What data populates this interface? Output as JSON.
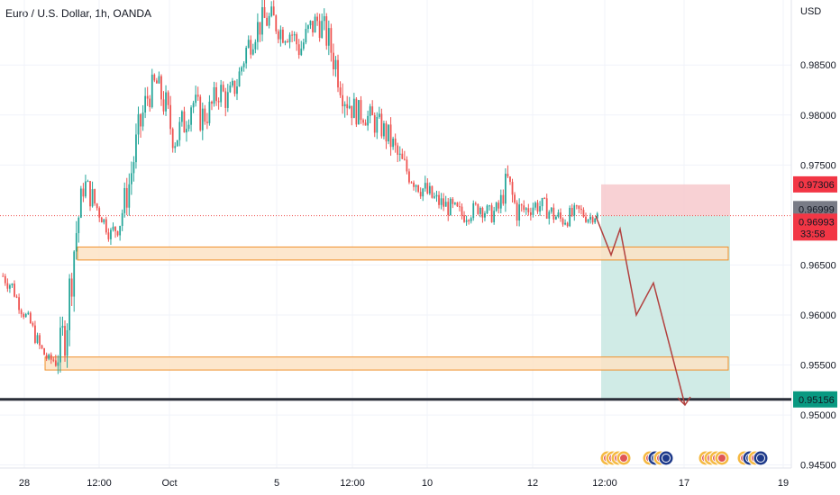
{
  "chart_data": {
    "type": "candlestick",
    "title": "Euro / U.S. Dollar, 1h, OANDA",
    "currency": "USD",
    "ylim": [
      0.942,
      0.9915
    ],
    "y_ticks": [
      "0.98500",
      "0.98000",
      "0.97500",
      "0.96500",
      "0.96000",
      "0.95500",
      "0.95000",
      "0.94500"
    ],
    "y_tick_values": [
      0.985,
      0.98,
      0.975,
      0.965,
      0.96,
      0.955,
      0.95,
      0.945
    ],
    "x_ticks": [
      "28",
      "12:00",
      "Oct",
      "5",
      "12:00",
      "10",
      "12",
      "12:00",
      "17",
      "19"
    ],
    "price_labels": {
      "stop": "0.97306",
      "current_gray": "0.96999",
      "current_red": "0.96993",
      "countdown": "33:58",
      "target": "0.95156"
    },
    "levels": {
      "stop": 0.97306,
      "entry": 0.96993,
      "target": 0.95156,
      "zone_upper": [
        0.9655,
        0.9668
      ],
      "zone_lower": [
        0.9545,
        0.9558
      ]
    },
    "projection": [
      [
        0.9699,
        0.966
      ],
      [
        0.966,
        0.9686
      ],
      [
        0.9686,
        0.96
      ],
      [
        0.96,
        0.9632
      ],
      [
        0.9632,
        0.951
      ]
    ],
    "price_path": [
      [
        0.963,
        0.9648
      ],
      [
        0.962,
        0.9638
      ],
      [
        0.96,
        0.9612
      ],
      [
        0.9585,
        0.96
      ],
      [
        0.956,
        0.9578
      ],
      [
        0.955,
        0.956
      ],
      [
        0.9542,
        0.957
      ],
      [
        0.956,
        0.962
      ],
      [
        0.965,
        0.97
      ],
      [
        0.972,
        0.9745
      ],
      [
        0.97,
        0.973
      ],
      [
        0.969,
        0.9705
      ],
      [
        0.967,
        0.969
      ],
      [
        0.968,
        0.971
      ],
      [
        0.971,
        0.975
      ],
      [
        0.976,
        0.98
      ],
      [
        0.98,
        0.9835
      ],
      [
        0.982,
        0.9845
      ],
      [
        0.979,
        0.983
      ],
      [
        0.976,
        0.979
      ],
      [
        0.977,
        0.981
      ],
      [
        0.98,
        0.983
      ],
      [
        0.978,
        0.9815
      ],
      [
        0.979,
        0.982
      ],
      [
        0.981,
        0.984
      ],
      [
        0.98,
        0.983
      ],
      [
        0.982,
        0.9845
      ],
      [
        0.985,
        0.988
      ],
      [
        0.987,
        0.99
      ],
      [
        0.988,
        0.991
      ],
      [
        0.988,
        0.991
      ],
      [
        0.987,
        0.9895
      ],
      [
        0.987,
        0.9895
      ],
      [
        0.985,
        0.988
      ],
      [
        0.987,
        0.99
      ],
      [
        0.988,
        0.991
      ],
      [
        0.986,
        0.9895
      ],
      [
        0.983,
        0.987
      ],
      [
        0.98,
        0.984
      ],
      [
        0.979,
        0.982
      ],
      [
        0.979,
        0.981
      ],
      [
        0.978,
        0.981
      ],
      [
        0.9775,
        0.98
      ],
      [
        0.976,
        0.979
      ],
      [
        0.974,
        0.977
      ],
      [
        0.973,
        0.9755
      ],
      [
        0.972,
        0.9745
      ],
      [
        0.971,
        0.9735
      ],
      [
        0.9705,
        0.9725
      ],
      [
        0.97,
        0.972
      ],
      [
        0.9695,
        0.9715
      ],
      [
        0.969,
        0.971
      ],
      [
        0.9695,
        0.9712
      ],
      [
        0.97,
        0.9718
      ],
      [
        0.969,
        0.971
      ],
      [
        0.9695,
        0.9715
      ],
      [
        0.972,
        0.975
      ],
      [
        0.969,
        0.972
      ],
      [
        0.9695,
        0.9715
      ],
      [
        0.97,
        0.972
      ],
      [
        0.97,
        0.9718
      ],
      [
        0.969,
        0.9712
      ],
      [
        0.9685,
        0.9705
      ],
      [
        0.969,
        0.9708
      ],
      [
        0.9695,
        0.9712
      ],
      [
        0.969,
        0.9705
      ],
      [
        0.9695,
        0.9705
      ]
    ]
  },
  "icons": {
    "event_groups": [
      "events-group-1",
      "events-group-2",
      "events-group-3",
      "events-group-4"
    ]
  },
  "colors": {
    "up": "#26a69a",
    "down": "#ef5350",
    "stop_zone": "#f7c9cd",
    "target_zone": "#cbe9e3",
    "zone_fill": "#fde3c4",
    "zone_stroke": "#f0902b",
    "projection": "#b2413f",
    "target_line": "#2a2e39",
    "target_label": "#089981",
    "stop_label": "#f23645",
    "current_gray": "#787b86"
  }
}
